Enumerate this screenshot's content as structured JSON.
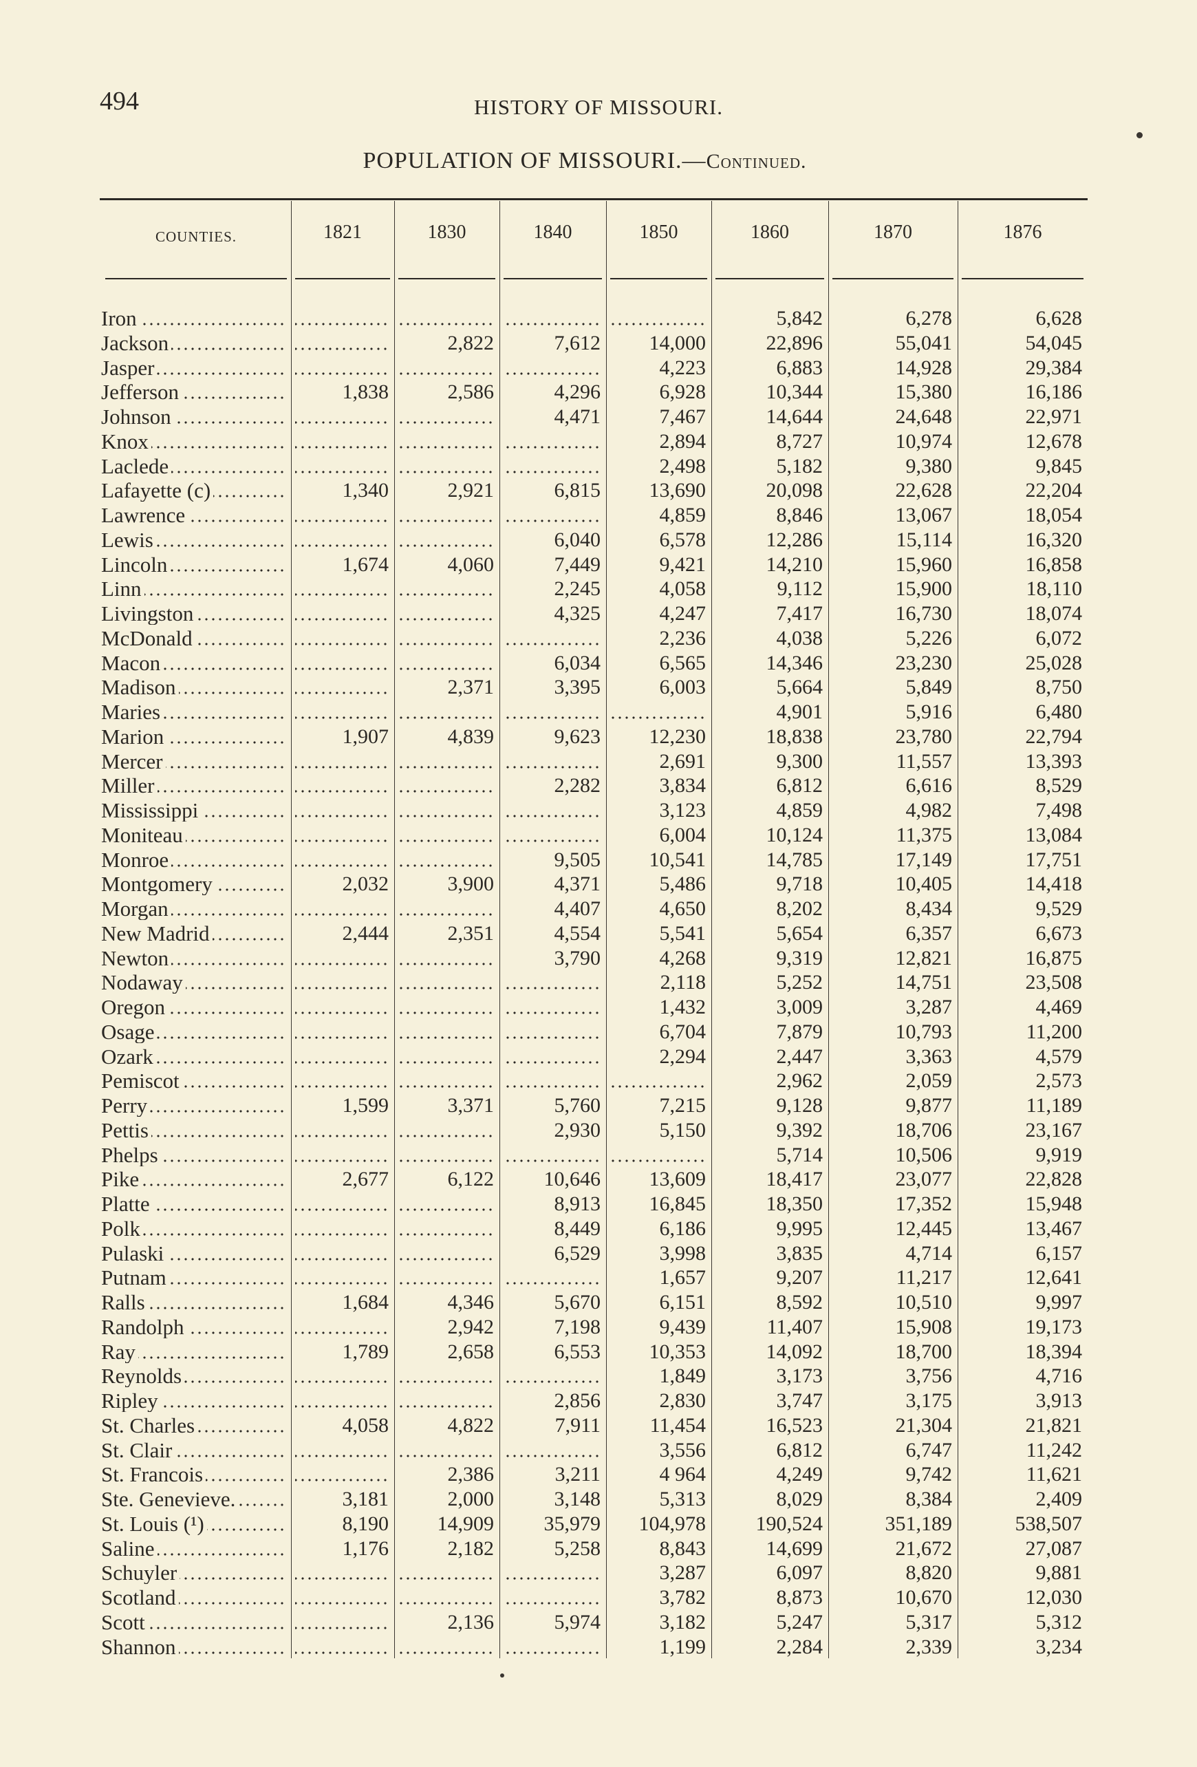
{
  "page": {
    "page_number": "494",
    "running_title": "HISTORY OF MISSOURI.",
    "table_title": "POPULATION OF MISSOURI.—",
    "table_title_suffix": "Continued."
  },
  "table": {
    "columns": [
      "COUNTIES.",
      "1821",
      "1830",
      "1840",
      "1850",
      "1860",
      "1870",
      "1876"
    ],
    "rows": [
      [
        "Iron",
        "",
        "",
        "",
        "",
        "5,842",
        "6,278",
        "6,628"
      ],
      [
        "Jackson",
        "",
        "2,822",
        "7,612",
        "14,000",
        "22,896",
        "55,041",
        "54,045"
      ],
      [
        "Jasper",
        "",
        "",
        "",
        "4,223",
        "6,883",
        "14,928",
        "29,384"
      ],
      [
        "Jefferson",
        "1,838",
        "2,586",
        "4,296",
        "6,928",
        "10,344",
        "15,380",
        "16,186"
      ],
      [
        "Johnson",
        "",
        "",
        "4,471",
        "7,467",
        "14,644",
        "24,648",
        "22,971"
      ],
      [
        "Knox",
        "",
        "",
        "",
        "2,894",
        "8,727",
        "10,974",
        "12,678"
      ],
      [
        "Laclede",
        "",
        "",
        "",
        "2,498",
        "5,182",
        "9,380",
        "9,845"
      ],
      [
        "Lafayette (c)",
        "1,340",
        "2,921",
        "6,815",
        "13,690",
        "20,098",
        "22,628",
        "22,204"
      ],
      [
        "Lawrence",
        "",
        "",
        "",
        "4,859",
        "8,846",
        "13,067",
        "18,054"
      ],
      [
        "Lewis",
        "",
        "",
        "6,040",
        "6,578",
        "12,286",
        "15,114",
        "16,320"
      ],
      [
        "Lincoln",
        "1,674",
        "4,060",
        "7,449",
        "9,421",
        "14,210",
        "15,960",
        "16,858"
      ],
      [
        "Linn",
        "",
        "",
        "2,245",
        "4,058",
        "9,112",
        "15,900",
        "18,110"
      ],
      [
        "Livingston",
        "",
        "",
        "4,325",
        "4,247",
        "7,417",
        "16,730",
        "18,074"
      ],
      [
        "McDonald",
        "",
        "",
        "",
        "2,236",
        "4,038",
        "5,226",
        "6,072"
      ],
      [
        "Macon",
        "",
        "",
        "6,034",
        "6,565",
        "14,346",
        "23,230",
        "25,028"
      ],
      [
        "Madison",
        "",
        "2,371",
        "3,395",
        "6,003",
        "5,664",
        "5,849",
        "8,750"
      ],
      [
        "Maries",
        "",
        "",
        "",
        "",
        "4,901",
        "5,916",
        "6,480"
      ],
      [
        "Marion",
        "1,907",
        "4,839",
        "9,623",
        "12,230",
        "18,838",
        "23,780",
        "22,794"
      ],
      [
        "Mercer",
        "",
        "",
        "",
        "2,691",
        "9,300",
        "11,557",
        "13,393"
      ],
      [
        "Miller",
        "",
        "",
        "2,282",
        "3,834",
        "6,812",
        "6,616",
        "8,529"
      ],
      [
        "Mississippi",
        "",
        "",
        "",
        "3,123",
        "4,859",
        "4,982",
        "7,498"
      ],
      [
        "Moniteau",
        "",
        "",
        "",
        "6,004",
        "10,124",
        "11,375",
        "13,084"
      ],
      [
        "Monroe",
        "",
        "",
        "9,505",
        "10,541",
        "14,785",
        "17,149",
        "17,751"
      ],
      [
        "Montgomery",
        "2,032",
        "3,900",
        "4,371",
        "5,486",
        "9,718",
        "10,405",
        "14,418"
      ],
      [
        "Morgan",
        "",
        "",
        "4,407",
        "4,650",
        "8,202",
        "8,434",
        "9,529"
      ],
      [
        "New Madrid",
        "2,444",
        "2,351",
        "4,554",
        "5,541",
        "5,654",
        "6,357",
        "6,673"
      ],
      [
        "Newton",
        "",
        "",
        "3,790",
        "4,268",
        "9,319",
        "12,821",
        "16,875"
      ],
      [
        "Nodaway",
        "",
        "",
        "",
        "2,118",
        "5,252",
        "14,751",
        "23,508"
      ],
      [
        "Oregon",
        "",
        "",
        "",
        "1,432",
        "3,009",
        "3,287",
        "4,469"
      ],
      [
        "Osage",
        "",
        "",
        "",
        "6,704",
        "7,879",
        "10,793",
        "11,200"
      ],
      [
        "Ozark",
        "",
        "",
        "",
        "2,294",
        "2,447",
        "3,363",
        "4,579"
      ],
      [
        "Pemiscot",
        "",
        "",
        "",
        "",
        "2,962",
        "2,059",
        "2,573"
      ],
      [
        "Perry",
        "1,599",
        "3,371",
        "5,760",
        "7,215",
        "9,128",
        "9,877",
        "11,189"
      ],
      [
        "Pettis",
        "",
        "",
        "2,930",
        "5,150",
        "9,392",
        "18,706",
        "23,167"
      ],
      [
        "Phelps",
        "",
        "",
        "",
        "",
        "5,714",
        "10,506",
        "9,919"
      ],
      [
        "Pike",
        "2,677",
        "6,122",
        "10,646",
        "13,609",
        "18,417",
        "23,077",
        "22,828"
      ],
      [
        "Platte",
        "",
        "",
        "8,913",
        "16,845",
        "18,350",
        "17,352",
        "15,948"
      ],
      [
        "Polk",
        "",
        "",
        "8,449",
        "6,186",
        "9,995",
        "12,445",
        "13,467"
      ],
      [
        "Pulaski",
        "",
        "",
        "6,529",
        "3,998",
        "3,835",
        "4,714",
        "6,157"
      ],
      [
        "Putnam",
        "",
        "",
        "",
        "1,657",
        "9,207",
        "11,217",
        "12,641"
      ],
      [
        "Ralls",
        "1,684",
        "4,346",
        "5,670",
        "6,151",
        "8,592",
        "10,510",
        "9,997"
      ],
      [
        "Randolph",
        "",
        "2,942",
        "7,198",
        "9,439",
        "11,407",
        "15,908",
        "19,173"
      ],
      [
        "Ray",
        "1,789",
        "2,658",
        "6,553",
        "10,353",
        "14,092",
        "18,700",
        "18,394"
      ],
      [
        "Reynolds",
        "",
        "",
        "",
        "1,849",
        "3,173",
        "3,756",
        "4,716"
      ],
      [
        "Ripley",
        "",
        "",
        "2,856",
        "2,830",
        "3,747",
        "3,175",
        "3,913"
      ],
      [
        "St. Charles",
        "4,058",
        "4,822",
        "7,911",
        "11,454",
        "16,523",
        "21,304",
        "21,821"
      ],
      [
        "St. Clair",
        "",
        "",
        "",
        "3,556",
        "6,812",
        "6,747",
        "11,242"
      ],
      [
        "St. Francois",
        "",
        "2,386",
        "3,211",
        "4 964",
        "4,249",
        "9,742",
        "11,621"
      ],
      [
        "Ste. Genevieve.",
        "3,181",
        "2,000",
        "3,148",
        "5,313",
        "8,029",
        "8,384",
        "2,409"
      ],
      [
        "St. Louis (¹)",
        "8,190",
        "14,909",
        "35,979",
        "104,978",
        "190,524",
        "351,189",
        "538,507"
      ],
      [
        "Saline",
        "1,176",
        "2,182",
        "5,258",
        "8,843",
        "14,699",
        "21,672",
        "27,087"
      ],
      [
        "Schuyler",
        "",
        "",
        "",
        "3,287",
        "6,097",
        "8,820",
        "9,881"
      ],
      [
        "Scotland",
        "",
        "",
        "",
        "3,782",
        "8,873",
        "10,670",
        "12,030"
      ],
      [
        "Scott",
        "",
        "2,136",
        "5,974",
        "3,182",
        "5,247",
        "5,317",
        "5,312"
      ],
      [
        "Shannon",
        "",
        "",
        "",
        "1,199",
        "2,284",
        "2,339",
        "3,234"
      ]
    ]
  }
}
